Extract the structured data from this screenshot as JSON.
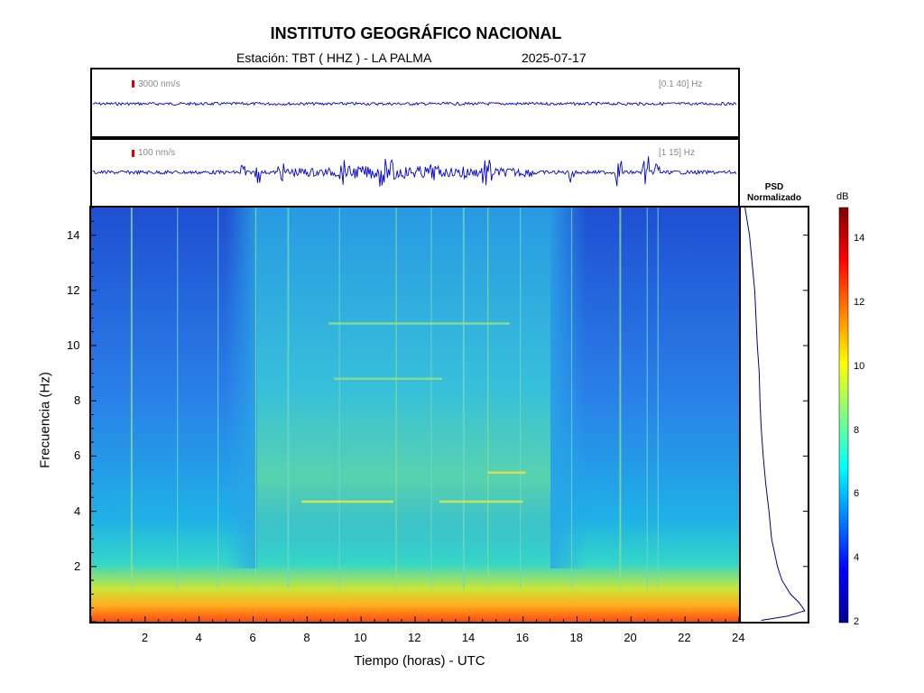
{
  "header": {
    "title": "INSTITUTO GEOGRÁFICO NACIONAL",
    "station": "Estación:  TBT ( HHZ ) - LA PALMA",
    "date": "2025-07-17"
  },
  "trace_top": {
    "scale": "3000 nm/s",
    "filter": "[0.1 40] Hz"
  },
  "trace_bottom": {
    "scale": "100 nm/s",
    "filter": "[1 15] Hz"
  },
  "psd": {
    "title_line1": "PSD",
    "title_line2": "Normalizado"
  },
  "colorbar": {
    "unit": "dB",
    "ticks": [
      "2",
      "4",
      "6",
      "8",
      "10",
      "12",
      "14"
    ],
    "range": [
      2,
      15
    ]
  },
  "axes": {
    "xlabel": "Tiempo (horas) - UTC",
    "ylabel": "Frecuencia  (Hz)",
    "xticks": [
      "2",
      "4",
      "6",
      "8",
      "10",
      "12",
      "14",
      "16",
      "18",
      "20",
      "22",
      "24"
    ],
    "yticks": [
      "2",
      "4",
      "6",
      "8",
      "10",
      "12",
      "14"
    ]
  },
  "colors": {
    "trace": "#0000dd",
    "scale_bar": "#e00000",
    "psd_line": "#00008b"
  },
  "chart_data": [
    {
      "type": "heatmap",
      "xlabel": "Tiempo (horas) - UTC",
      "ylabel": "Frecuencia  (Hz)",
      "xlim": [
        0,
        24
      ],
      "ylim": [
        0,
        15
      ],
      "zlabel": "dB",
      "zlim": [
        2,
        15
      ],
      "description_values": {
        "quiet_hours": [
          [
            0,
            5.5
          ],
          [
            19,
            24
          ]
        ],
        "noisy_hours": [
          [
            5.5,
            17
          ]
        ],
        "band_lines_hz": [
          4.3,
          5.4,
          8.8,
          10.8
        ]
      }
    },
    {
      "type": "line",
      "title": "PSD Normalizado",
      "y_hz": [
        15,
        14,
        13,
        12,
        11,
        10,
        9,
        8,
        7,
        6,
        5,
        4,
        3,
        2,
        1.5,
        1,
        0.7,
        0.4,
        0.2,
        0.05
      ],
      "x_norm": [
        0.05,
        0.12,
        0.16,
        0.2,
        0.22,
        0.24,
        0.27,
        0.28,
        0.3,
        0.33,
        0.37,
        0.42,
        0.46,
        0.55,
        0.62,
        0.75,
        0.88,
        0.97,
        0.7,
        0.3
      ]
    }
  ]
}
